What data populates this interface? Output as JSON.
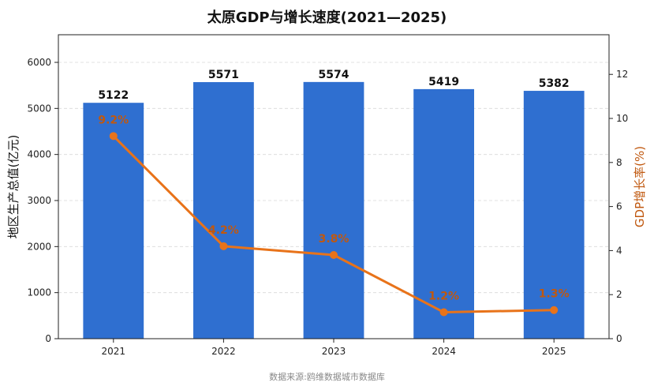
{
  "chart_data": {
    "type": "bar",
    "title": "太原GDP与增长速度(2021—2025)",
    "categories": [
      "2021",
      "2022",
      "2023",
      "2024",
      "2025"
    ],
    "series": [
      {
        "name": "地区生产总值(亿元)",
        "type": "bar",
        "axis": "left",
        "values": [
          5122,
          5571,
          5574,
          5419,
          5382
        ],
        "color": "#2f6fd0"
      },
      {
        "name": "GDP增长率(%)",
        "type": "line",
        "axis": "right",
        "values": [
          9.2,
          4.2,
          3.8,
          1.2,
          1.3
        ],
        "color": "#e8731a"
      }
    ],
    "bar_labels": [
      "5122",
      "5571",
      "5574",
      "5419",
      "5382"
    ],
    "line_labels": [
      "9.2%",
      "4.2%",
      "3.8%",
      "1.2%",
      "1.3%"
    ],
    "ylabel_left": "地区生产总值(亿元)",
    "ylabel_right": "GDP增长率(%)",
    "ylim_left": [
      0,
      6600
    ],
    "ylim_right": [
      0,
      13.8
    ],
    "yticks_left": [
      0,
      1000,
      2000,
      3000,
      4000,
      5000,
      6000
    ],
    "yticks_right": [
      0,
      2,
      4,
      6,
      8,
      10,
      12
    ],
    "grid": true,
    "right_axis_color": "#c0580f"
  },
  "footer": {
    "source": "数据来源:鸥维数据城市数据库"
  }
}
